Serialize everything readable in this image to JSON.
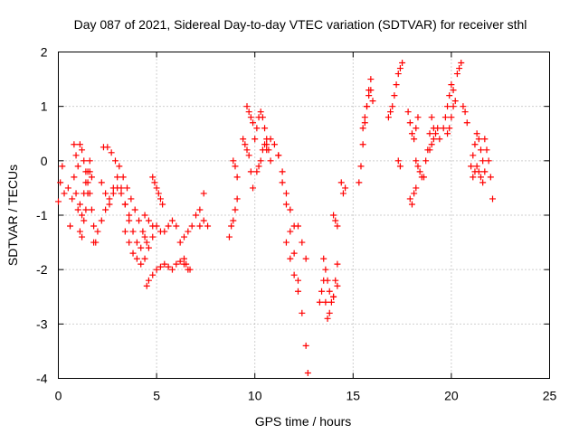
{
  "chart_data": {
    "type": "scatter",
    "title": "Day 087 of 2021, Sidereal Day-to-day VTEC variation (SDTVAR) for receiver sthl",
    "xlabel": "GPS time / hours",
    "ylabel": "SDTVAR / TECUs",
    "xlim": [
      0,
      25
    ],
    "ylim": [
      -4,
      2
    ],
    "xticks": [
      0,
      5,
      10,
      15,
      20,
      25
    ],
    "xtick_labels": [
      "0",
      "5",
      "10",
      "15",
      "20",
      "25"
    ],
    "yticks": [
      -4,
      -3,
      -2,
      -1,
      0,
      1,
      2
    ],
    "ytick_labels": [
      "-4",
      "-3",
      "-2",
      "-1",
      "0",
      "1",
      "2"
    ],
    "grid": true,
    "marker": "+",
    "color": "#ff0000",
    "series": [
      {
        "name": "SDTVAR",
        "tracks": [
          {
            "x": [
              0.0,
              0.1,
              0.2,
              0.3
            ],
            "y": [
              -0.75,
              -0.4,
              -0.1,
              -0.6
            ]
          },
          {
            "x": [
              0.5,
              0.6,
              0.7,
              0.8,
              0.9,
              1.0,
              1.1,
              1.2,
              1.3,
              1.4,
              1.5,
              1.6,
              1.7
            ],
            "y": [
              -0.5,
              -1.2,
              -0.7,
              0.3,
              0.1,
              -0.1,
              -0.8,
              -1.0,
              -0.6,
              -0.4,
              -0.2,
              0.0,
              -0.3
            ]
          },
          {
            "x": [
              0.8,
              0.9,
              1.0,
              1.1,
              1.2,
              1.3,
              1.4,
              1.5,
              1.6
            ],
            "y": [
              -0.3,
              -0.6,
              -0.9,
              -1.3,
              -1.4,
              -1.1,
              -0.9,
              -0.6,
              -0.2
            ]
          },
          {
            "x": [
              1.1,
              1.2,
              1.3,
              1.4,
              1.5,
              1.6,
              1.7,
              1.8,
              1.9
            ],
            "y": [
              0.3,
              0.2,
              0.0,
              -0.2,
              -0.4,
              -0.6,
              -0.9,
              -1.2,
              -1.5
            ]
          },
          {
            "x": [
              1.8,
              2.0,
              2.2,
              2.4,
              2.6,
              2.8,
              3.0,
              3.2,
              3.4,
              3.6
            ],
            "y": [
              -1.5,
              -1.3,
              -1.1,
              -0.9,
              -0.7,
              -0.6,
              -0.5,
              -0.6,
              -0.8,
              -1.0
            ]
          },
          {
            "x": [
              2.3,
              2.5,
              2.7,
              2.9,
              3.1,
              3.3,
              3.5,
              3.7,
              3.9,
              4.1,
              4.3,
              4.5
            ],
            "y": [
              0.25,
              0.25,
              0.15,
              0.0,
              -0.1,
              -0.3,
              -0.5,
              -0.7,
              -0.9,
              -1.1,
              -1.3,
              -1.5
            ]
          },
          {
            "x": [
              2.2,
              2.4,
              2.6,
              2.8,
              3.0,
              3.2,
              3.4,
              3.6,
              3.8,
              4.0,
              4.2,
              4.4
            ],
            "y": [
              -0.4,
              -0.6,
              -0.8,
              -0.5,
              -0.3,
              -0.5,
              -0.8,
              -1.1,
              -1.3,
              -1.5,
              -1.6,
              -1.4
            ]
          },
          {
            "x": [
              3.4,
              3.6,
              3.8,
              4.0,
              4.2,
              4.4,
              4.6,
              4.8
            ],
            "y": [
              -1.3,
              -1.5,
              -1.7,
              -1.8,
              -1.9,
              -1.8,
              -1.6,
              -1.4
            ]
          },
          {
            "x": [
              4.4,
              4.6,
              4.8,
              5.0,
              5.2,
              5.4,
              5.6,
              5.8,
              6.0
            ],
            "y": [
              -1.0,
              -1.1,
              -1.2,
              -1.2,
              -1.3,
              -1.3,
              -1.2,
              -1.1,
              -1.2
            ]
          },
          {
            "x": [
              4.5,
              4.6,
              4.8,
              5.0,
              5.2,
              5.4,
              5.6,
              5.8,
              6.0,
              6.2,
              6.4
            ],
            "y": [
              -2.3,
              -2.2,
              -2.1,
              -2.0,
              -1.95,
              -1.9,
              -1.95,
              -2.0,
              -1.9,
              -1.85,
              -1.9
            ]
          },
          {
            "x": [
              4.8,
              4.9,
              5.0,
              5.1,
              5.2,
              5.3
            ],
            "y": [
              -0.3,
              -0.4,
              -0.5,
              -0.6,
              -0.7,
              -0.8
            ]
          },
          {
            "x": [
              6.2,
              6.4,
              6.6,
              6.8,
              7.0,
              7.2,
              7.4
            ],
            "y": [
              -1.5,
              -1.4,
              -1.3,
              -1.2,
              -1.0,
              -0.9,
              -0.6
            ]
          },
          {
            "x": [
              6.4,
              6.5,
              6.6,
              6.7
            ],
            "y": [
              -1.8,
              -1.9,
              -2.0,
              -2.0
            ]
          },
          {
            "x": [
              7.2,
              7.4,
              7.6
            ],
            "y": [
              -1.2,
              -1.1,
              -1.2
            ]
          },
          {
            "x": [
              8.7,
              8.8,
              8.9,
              9.0,
              9.1
            ],
            "y": [
              -1.4,
              -1.2,
              -1.1,
              -0.9,
              -0.7
            ]
          },
          {
            "x": [
              8.9,
              9.0,
              9.1
            ],
            "y": [
              0.0,
              -0.1,
              -0.3
            ]
          },
          {
            "x": [
              9.4,
              9.5,
              9.6,
              9.7,
              9.8,
              9.9
            ],
            "y": [
              0.4,
              0.3,
              0.2,
              0.1,
              -0.2,
              -0.5
            ]
          },
          {
            "x": [
              9.6,
              9.7,
              9.8,
              9.9
            ],
            "y": [
              1.0,
              0.9,
              0.8,
              0.7
            ]
          },
          {
            "x": [
              10.0,
              10.1,
              10.2,
              10.3,
              10.4,
              10.5,
              10.6,
              10.7,
              10.8
            ],
            "y": [
              0.4,
              0.6,
              0.8,
              0.9,
              0.8,
              0.6,
              0.4,
              0.2,
              0.0
            ]
          },
          {
            "x": [
              10.1,
              10.2,
              10.3,
              10.4,
              10.5,
              10.6
            ],
            "y": [
              -0.2,
              -0.1,
              0.0,
              0.2,
              0.3,
              0.2
            ]
          },
          {
            "x": [
              10.6,
              10.8,
              11.0,
              11.2,
              11.4,
              11.6,
              11.8,
              12.0
            ],
            "y": [
              0.3,
              0.4,
              0.3,
              0.1,
              -0.2,
              -0.6,
              -0.9,
              -1.2
            ]
          },
          {
            "x": [
              11.2,
              11.4,
              11.6,
              11.8,
              12.0,
              12.2,
              12.4,
              12.6,
              12.7
            ],
            "y": [
              0.1,
              -0.4,
              -0.8,
              -1.3,
              -1.7,
              -2.2,
              -2.8,
              -3.4,
              -3.9
            ]
          },
          {
            "x": [
              11.6,
              11.8,
              12.0,
              12.2
            ],
            "y": [
              -1.5,
              -1.8,
              -2.1,
              -2.4
            ]
          },
          {
            "x": [
              12.2,
              12.4,
              12.6
            ],
            "y": [
              -1.2,
              -1.5,
              -1.8
            ]
          },
          {
            "x": [
              13.3,
              13.4,
              13.5,
              13.6,
              13.7,
              13.8,
              14.0,
              14.2
            ],
            "y": [
              -2.6,
              -2.4,
              -2.2,
              -2.6,
              -2.9,
              -2.8,
              -2.5,
              -2.3
            ]
          },
          {
            "x": [
              13.5,
              13.6,
              13.7,
              13.8,
              13.9,
              14.0,
              14.1,
              14.2
            ],
            "y": [
              -1.8,
              -2.0,
              -2.2,
              -2.4,
              -2.6,
              -2.5,
              -2.2,
              -1.9
            ]
          },
          {
            "x": [
              14.0,
              14.1,
              14.2
            ],
            "y": [
              -1.0,
              -1.1,
              -1.2
            ]
          },
          {
            "x": [
              14.4,
              14.5,
              14.6
            ],
            "y": [
              -0.4,
              -0.6,
              -0.5
            ]
          },
          {
            "x": [
              15.3,
              15.4,
              15.5,
              15.6,
              15.7,
              15.8,
              15.9
            ],
            "y": [
              -0.4,
              -0.1,
              0.3,
              0.7,
              1.0,
              1.3,
              1.5
            ]
          },
          {
            "x": [
              15.5,
              15.6,
              15.7,
              15.8,
              15.9,
              16.0
            ],
            "y": [
              0.6,
              0.8,
              1.0,
              1.2,
              1.3,
              1.1
            ]
          },
          {
            "x": [
              16.8,
              16.9,
              17.0,
              17.1,
              17.2
            ],
            "y": [
              0.8,
              0.9,
              1.0,
              1.2,
              1.4
            ]
          },
          {
            "x": [
              17.3,
              17.4,
              17.5
            ],
            "y": [
              1.6,
              1.7,
              1.8
            ]
          },
          {
            "x": [
              17.3,
              17.4
            ],
            "y": [
              0.0,
              -0.1
            ]
          },
          {
            "x": [
              17.8,
              17.9,
              18.0,
              18.1,
              18.2,
              18.3
            ],
            "y": [
              0.9,
              0.7,
              0.5,
              0.4,
              0.6,
              0.8
            ]
          },
          {
            "x": [
              17.9,
              18.0,
              18.1,
              18.2
            ],
            "y": [
              -0.7,
              -0.8,
              -0.6,
              -0.5
            ]
          },
          {
            "x": [
              18.2,
              18.3,
              18.4,
              18.5
            ],
            "y": [
              0.0,
              -0.1,
              -0.2,
              -0.3
            ]
          },
          {
            "x": [
              18.6,
              18.7,
              18.8,
              18.9,
              19.0,
              19.1
            ],
            "y": [
              -0.3,
              0.0,
              0.2,
              0.5,
              0.8,
              0.6
            ]
          },
          {
            "x": [
              18.9,
              19.0,
              19.1,
              19.2,
              19.3,
              19.4
            ],
            "y": [
              0.2,
              0.3,
              0.4,
              0.5,
              0.6,
              0.4
            ]
          },
          {
            "x": [
              19.6,
              19.7,
              19.8,
              19.9,
              20.0,
              20.1,
              20.2
            ],
            "y": [
              0.6,
              0.8,
              1.0,
              1.2,
              1.4,
              1.3,
              1.1
            ]
          },
          {
            "x": [
              19.8,
              19.9,
              20.0,
              20.1
            ],
            "y": [
              0.5,
              0.6,
              0.8,
              1.0
            ]
          },
          {
            "x": [
              20.3,
              20.4,
              20.5,
              20.6,
              20.7,
              20.8
            ],
            "y": [
              1.6,
              1.7,
              1.8,
              1.0,
              0.9,
              0.7
            ]
          },
          {
            "x": [
              21.0,
              21.1,
              21.2,
              21.3,
              21.4,
              21.5,
              21.6,
              21.7
            ],
            "y": [
              -0.1,
              0.1,
              0.3,
              0.5,
              0.4,
              0.2,
              0.0,
              -0.2
            ]
          },
          {
            "x": [
              21.1,
              21.2,
              21.3,
              21.4,
              21.5,
              21.6
            ],
            "y": [
              -0.3,
              -0.2,
              -0.1,
              -0.2,
              -0.3,
              -0.4
            ]
          },
          {
            "x": [
              21.7,
              21.8,
              21.9,
              22.0,
              22.1
            ],
            "y": [
              0.4,
              0.2,
              0.0,
              -0.3,
              -0.7
            ]
          }
        ]
      }
    ]
  }
}
